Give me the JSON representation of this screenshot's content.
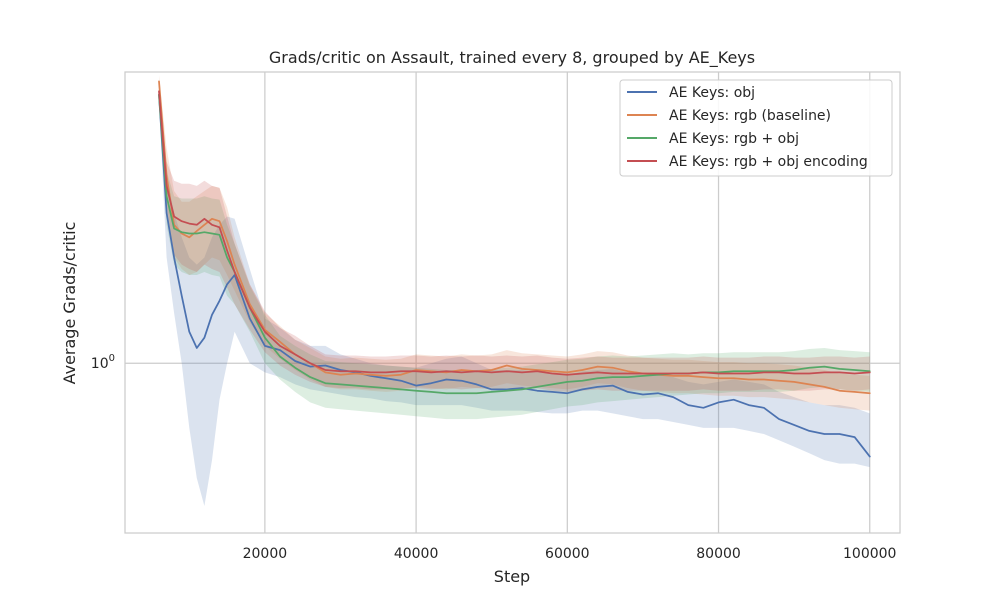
{
  "chart_data": {
    "type": "line",
    "title": "Grads/critic on Assault, trained every 8, grouped by AE_Keys",
    "xlabel": "Step",
    "ylabel": "Average Grads/critic",
    "xlim": [
      1500,
      104000
    ],
    "ylim": [
      0.47,
      3.65
    ],
    "yscale": "log",
    "grid": true,
    "legend_position": "top-right",
    "xticks": [
      {
        "value": 20000,
        "label": "20000"
      },
      {
        "value": 40000,
        "label": "40000"
      },
      {
        "value": 60000,
        "label": "60000"
      },
      {
        "value": 80000,
        "label": "80000"
      },
      {
        "value": 100000,
        "label": "100000"
      }
    ],
    "yticks": [
      {
        "value": 1.0,
        "base": "10",
        "exp": "0"
      }
    ],
    "series": [
      {
        "name": "AE Keys: obj",
        "color": "#4c72b0",
        "x": [
          6000,
          7000,
          8000,
          9000,
          10000,
          11000,
          12000,
          13000,
          14000,
          15000,
          16000,
          18000,
          20000,
          22000,
          24000,
          26000,
          28000,
          30000,
          32000,
          34000,
          36000,
          38000,
          40000,
          42000,
          44000,
          46000,
          48000,
          50000,
          52000,
          54000,
          56000,
          58000,
          60000,
          62000,
          64000,
          66000,
          68000,
          70000,
          72000,
          74000,
          76000,
          78000,
          80000,
          82000,
          84000,
          86000,
          88000,
          90000,
          92000,
          94000,
          96000,
          98000,
          100000
        ],
        "y": [
          3.3,
          1.95,
          1.6,
          1.35,
          1.15,
          1.07,
          1.12,
          1.24,
          1.32,
          1.42,
          1.48,
          1.22,
          1.08,
          1.06,
          1.01,
          0.985,
          0.99,
          0.97,
          0.96,
          0.945,
          0.935,
          0.925,
          0.905,
          0.915,
          0.93,
          0.925,
          0.91,
          0.89,
          0.89,
          0.895,
          0.885,
          0.88,
          0.875,
          0.89,
          0.9,
          0.905,
          0.88,
          0.87,
          0.875,
          0.86,
          0.83,
          0.82,
          0.84,
          0.85,
          0.83,
          0.82,
          0.78,
          0.76,
          0.74,
          0.73,
          0.73,
          0.72,
          0.66
        ],
        "lower": [
          3.2,
          1.6,
          1.25,
          1.0,
          0.75,
          0.6,
          0.53,
          0.65,
          0.85,
          1.0,
          1.15,
          1.0,
          0.96,
          0.94,
          0.91,
          0.89,
          0.88,
          0.87,
          0.86,
          0.855,
          0.845,
          0.84,
          0.83,
          0.83,
          0.83,
          0.83,
          0.82,
          0.81,
          0.81,
          0.81,
          0.805,
          0.8,
          0.8,
          0.81,
          0.81,
          0.8,
          0.79,
          0.78,
          0.78,
          0.77,
          0.76,
          0.75,
          0.75,
          0.75,
          0.74,
          0.73,
          0.71,
          0.69,
          0.67,
          0.65,
          0.64,
          0.64,
          0.63
        ],
        "upper": [
          3.4,
          2.3,
          1.95,
          1.75,
          1.6,
          1.55,
          1.6,
          1.75,
          1.85,
          1.92,
          1.9,
          1.52,
          1.22,
          1.17,
          1.11,
          1.08,
          1.08,
          1.04,
          1.02,
          1.0,
          0.99,
          0.985,
          0.98,
          1.0,
          1.02,
          1.03,
          1.0,
          0.97,
          0.97,
          0.97,
          0.96,
          0.955,
          0.95,
          0.965,
          0.97,
          0.975,
          0.96,
          0.95,
          0.95,
          0.94,
          0.92,
          0.91,
          0.92,
          0.93,
          0.92,
          0.91,
          0.88,
          0.86,
          0.84,
          0.83,
          0.83,
          0.82,
          0.8
        ]
      },
      {
        "name": "AE Keys: rgb (baseline)",
        "color": "#dd8452",
        "x": [
          6000,
          7000,
          8000,
          9000,
          10000,
          11000,
          12000,
          13000,
          14000,
          15000,
          16000,
          18000,
          20000,
          22000,
          24000,
          26000,
          28000,
          30000,
          32000,
          34000,
          36000,
          38000,
          40000,
          42000,
          44000,
          46000,
          48000,
          50000,
          52000,
          54000,
          56000,
          58000,
          60000,
          62000,
          64000,
          66000,
          68000,
          70000,
          72000,
          74000,
          76000,
          78000,
          80000,
          82000,
          84000,
          86000,
          88000,
          90000,
          92000,
          94000,
          96000,
          98000,
          100000
        ],
        "y": [
          3.5,
          2.3,
          1.85,
          1.78,
          1.75,
          1.8,
          1.85,
          1.9,
          1.88,
          1.72,
          1.55,
          1.3,
          1.16,
          1.1,
          1.04,
          1.0,
          0.96,
          0.95,
          0.955,
          0.95,
          0.945,
          0.95,
          0.97,
          0.965,
          0.96,
          0.97,
          0.965,
          0.97,
          0.99,
          0.975,
          0.97,
          0.965,
          0.96,
          0.97,
          0.985,
          0.98,
          0.965,
          0.955,
          0.95,
          0.945,
          0.945,
          0.94,
          0.935,
          0.935,
          0.93,
          0.93,
          0.925,
          0.92,
          0.91,
          0.9,
          0.885,
          0.88,
          0.875
        ],
        "lower": [
          3.4,
          2.05,
          1.6,
          1.52,
          1.48,
          1.5,
          1.55,
          1.6,
          1.58,
          1.48,
          1.38,
          1.2,
          1.08,
          1.02,
          0.97,
          0.93,
          0.9,
          0.89,
          0.89,
          0.885,
          0.88,
          0.885,
          0.9,
          0.895,
          0.89,
          0.9,
          0.895,
          0.9,
          0.915,
          0.905,
          0.9,
          0.895,
          0.89,
          0.9,
          0.915,
          0.91,
          0.895,
          0.885,
          0.88,
          0.875,
          0.875,
          0.87,
          0.865,
          0.865,
          0.86,
          0.86,
          0.855,
          0.85,
          0.84,
          0.83,
          0.82,
          0.815,
          0.81
        ],
        "upper": [
          3.6,
          2.6,
          2.15,
          2.05,
          2.05,
          2.1,
          2.15,
          2.2,
          2.18,
          2.0,
          1.75,
          1.42,
          1.25,
          1.18,
          1.11,
          1.07,
          1.03,
          1.02,
          1.025,
          1.02,
          1.015,
          1.02,
          1.04,
          1.035,
          1.03,
          1.04,
          1.035,
          1.04,
          1.06,
          1.045,
          1.04,
          1.035,
          1.03,
          1.04,
          1.055,
          1.05,
          1.035,
          1.025,
          1.02,
          1.015,
          1.015,
          1.01,
          1.005,
          1.005,
          1.0,
          1.0,
          0.995,
          0.99,
          0.98,
          0.97,
          0.955,
          0.95,
          0.945
        ]
      },
      {
        "name": "AE Keys: rgb + obj",
        "color": "#55a868",
        "x": [
          6000,
          7000,
          8000,
          9000,
          10000,
          11000,
          12000,
          13000,
          14000,
          15000,
          16000,
          18000,
          20000,
          22000,
          24000,
          26000,
          28000,
          30000,
          32000,
          34000,
          36000,
          38000,
          40000,
          42000,
          44000,
          46000,
          48000,
          50000,
          52000,
          54000,
          56000,
          58000,
          60000,
          62000,
          64000,
          66000,
          68000,
          70000,
          72000,
          74000,
          76000,
          78000,
          80000,
          82000,
          84000,
          86000,
          88000,
          90000,
          92000,
          94000,
          96000,
          98000,
          100000
        ],
        "y": [
          3.3,
          2.1,
          1.82,
          1.79,
          1.78,
          1.78,
          1.79,
          1.78,
          1.77,
          1.6,
          1.5,
          1.28,
          1.12,
          1.03,
          0.98,
          0.94,
          0.915,
          0.91,
          0.905,
          0.9,
          0.895,
          0.89,
          0.885,
          0.88,
          0.875,
          0.875,
          0.875,
          0.88,
          0.885,
          0.89,
          0.9,
          0.91,
          0.92,
          0.925,
          0.935,
          0.94,
          0.94,
          0.945,
          0.95,
          0.955,
          0.955,
          0.96,
          0.96,
          0.965,
          0.965,
          0.965,
          0.965,
          0.97,
          0.98,
          0.985,
          0.975,
          0.97,
          0.965
        ],
        "lower": [
          3.2,
          1.85,
          1.55,
          1.5,
          1.48,
          1.48,
          1.5,
          1.48,
          1.47,
          1.35,
          1.3,
          1.15,
          1.0,
          0.93,
          0.88,
          0.84,
          0.82,
          0.815,
          0.81,
          0.805,
          0.8,
          0.795,
          0.79,
          0.785,
          0.78,
          0.78,
          0.78,
          0.785,
          0.79,
          0.795,
          0.805,
          0.815,
          0.825,
          0.83,
          0.84,
          0.845,
          0.85,
          0.855,
          0.86,
          0.865,
          0.87,
          0.875,
          0.875,
          0.88,
          0.88,
          0.88,
          0.88,
          0.885,
          0.895,
          0.9,
          0.89,
          0.885,
          0.88
        ],
        "upper": [
          3.4,
          2.35,
          2.1,
          2.08,
          2.08,
          2.08,
          2.1,
          2.08,
          2.07,
          1.85,
          1.7,
          1.41,
          1.24,
          1.13,
          1.08,
          1.04,
          1.01,
          1.005,
          1.0,
          0.995,
          0.99,
          0.985,
          0.98,
          0.975,
          0.97,
          0.97,
          0.97,
          0.975,
          0.98,
          0.985,
          0.995,
          1.005,
          1.015,
          1.02,
          1.03,
          1.035,
          1.03,
          1.035,
          1.04,
          1.045,
          1.04,
          1.045,
          1.045,
          1.05,
          1.05,
          1.05,
          1.05,
          1.055,
          1.065,
          1.07,
          1.06,
          1.055,
          1.05
        ]
      },
      {
        "name": "AE Keys: rgb + obj encoding",
        "color": "#c44e52",
        "x": [
          6000,
          7000,
          8000,
          9000,
          10000,
          11000,
          12000,
          13000,
          14000,
          15000,
          16000,
          18000,
          20000,
          22000,
          24000,
          26000,
          28000,
          30000,
          32000,
          34000,
          36000,
          38000,
          40000,
          42000,
          44000,
          46000,
          48000,
          50000,
          52000,
          54000,
          56000,
          58000,
          60000,
          62000,
          64000,
          66000,
          68000,
          70000,
          72000,
          74000,
          76000,
          78000,
          80000,
          82000,
          84000,
          86000,
          88000,
          90000,
          92000,
          94000,
          96000,
          98000,
          100000
        ],
        "y": [
          3.35,
          2.2,
          1.92,
          1.88,
          1.86,
          1.85,
          1.9,
          1.85,
          1.83,
          1.65,
          1.5,
          1.28,
          1.15,
          1.08,
          1.04,
          1.0,
          0.97,
          0.965,
          0.965,
          0.96,
          0.96,
          0.965,
          0.965,
          0.96,
          0.965,
          0.96,
          0.965,
          0.96,
          0.965,
          0.96,
          0.965,
          0.955,
          0.95,
          0.955,
          0.96,
          0.955,
          0.955,
          0.955,
          0.955,
          0.955,
          0.955,
          0.96,
          0.955,
          0.955,
          0.955,
          0.96,
          0.96,
          0.955,
          0.955,
          0.96,
          0.96,
          0.955,
          0.96
        ],
        "lower": [
          3.25,
          1.95,
          1.62,
          1.55,
          1.52,
          1.5,
          1.55,
          1.52,
          1.5,
          1.4,
          1.3,
          1.16,
          1.05,
          0.99,
          0.95,
          0.92,
          0.9,
          0.895,
          0.895,
          0.89,
          0.89,
          0.895,
          0.895,
          0.89,
          0.895,
          0.89,
          0.895,
          0.89,
          0.895,
          0.89,
          0.895,
          0.885,
          0.88,
          0.885,
          0.89,
          0.885,
          0.885,
          0.885,
          0.885,
          0.885,
          0.885,
          0.89,
          0.885,
          0.885,
          0.885,
          0.89,
          0.89,
          0.885,
          0.885,
          0.89,
          0.89,
          0.885,
          0.89
        ],
        "upper": [
          3.45,
          2.45,
          2.25,
          2.22,
          2.22,
          2.2,
          2.25,
          2.2,
          2.18,
          1.92,
          1.7,
          1.42,
          1.26,
          1.17,
          1.13,
          1.08,
          1.04,
          1.035,
          1.035,
          1.03,
          1.03,
          1.035,
          1.035,
          1.03,
          1.035,
          1.03,
          1.035,
          1.03,
          1.035,
          1.03,
          1.035,
          1.025,
          1.02,
          1.025,
          1.03,
          1.025,
          1.025,
          1.025,
          1.025,
          1.025,
          1.025,
          1.03,
          1.025,
          1.025,
          1.025,
          1.03,
          1.03,
          1.025,
          1.025,
          1.03,
          1.03,
          1.025,
          1.03
        ]
      }
    ]
  }
}
